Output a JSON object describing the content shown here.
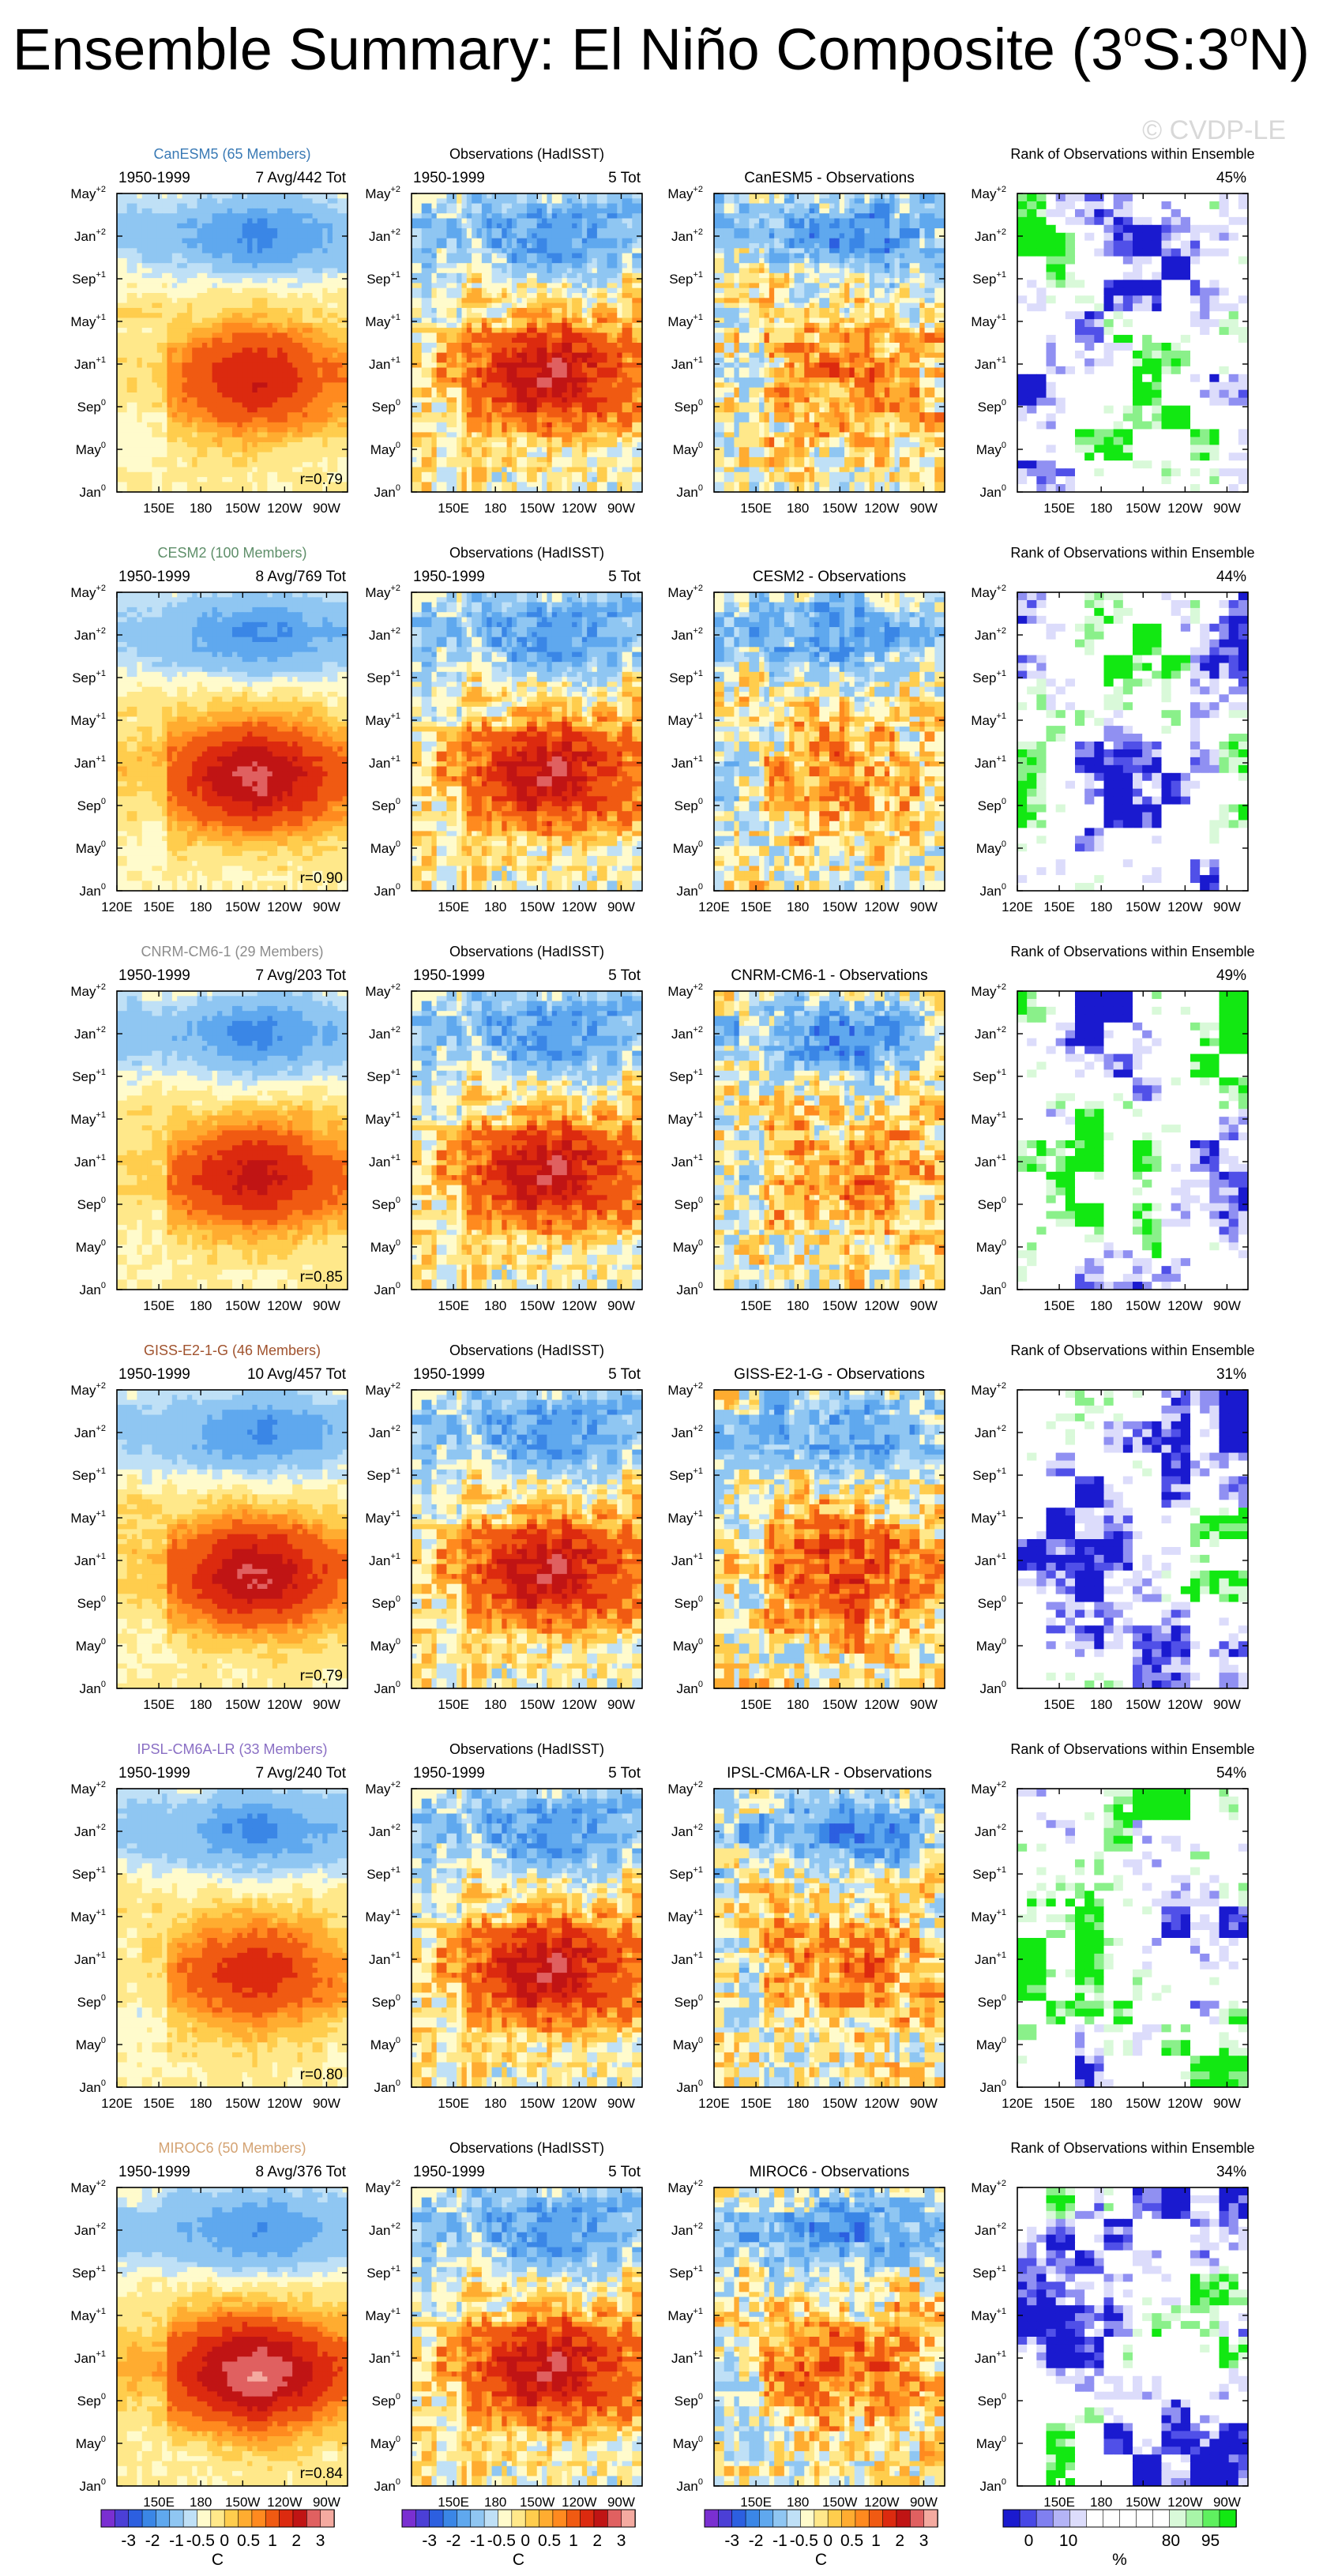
{
  "title": "Ensemble Summary: El Niño Composite (3",
  "title_sup1": "o",
  "title_mid": "S:3",
  "title_sup2": "o",
  "title_end": "N)",
  "watermark": "© CVDP-LE",
  "obs_title": "Observations (HadISST)",
  "rank_title": "Rank of Observations within Ensemble",
  "y_ticks": [
    {
      "b": "May",
      "s": "+2"
    },
    {
      "b": "Jan",
      "s": "+2"
    },
    {
      "b": "Sep",
      "s": "+1"
    },
    {
      "b": "May",
      "s": "+1"
    },
    {
      "b": "Jan",
      "s": "+1"
    },
    {
      "b": "Sep",
      "s": "0"
    },
    {
      "b": "May",
      "s": "0"
    },
    {
      "b": "Jan",
      "s": "0"
    }
  ],
  "x_ticks_short": [
    "150E",
    "180",
    "150W",
    "120W",
    "90W"
  ],
  "x_ticks_long": [
    "120E",
    "150E",
    "180",
    "150W",
    "120W",
    "90W"
  ],
  "rows": [
    {
      "model": "CanESM5 (65 Members)",
      "color": "#3a7ab5",
      "period": "1950-1999",
      "count": "7 Avg/442 Tot",
      "obs_period": "1950-1999",
      "obs_tot": "5 Tot",
      "diff": "CanESM5 - Observations",
      "rank": "45%",
      "r": "r=0.79",
      "peak": 2.0,
      "blend": 0.35,
      "long_ticks": false
    },
    {
      "model": "CESM2 (100 Members)",
      "color": "#5f8f6a",
      "period": "1950-1999",
      "count": "8 Avg/769 Tot",
      "obs_period": "1950-1999",
      "obs_tot": "5 Tot",
      "diff": "CESM2 - Observations",
      "rank": "44%",
      "r": "r=0.90",
      "peak": 2.6,
      "blend": 0.15,
      "long_ticks": true
    },
    {
      "model": "CNRM-CM6-1 (29 Members)",
      "color": "#8c8c8c",
      "period": "1950-1999",
      "count": "7 Avg/203 Tot",
      "obs_period": "1950-1999",
      "obs_tot": "5 Tot",
      "diff": "CNRM-CM6-1 - Observations",
      "rank": "49%",
      "r": "r=0.85",
      "peak": 2.2,
      "blend": 0.2,
      "long_ticks": false
    },
    {
      "model": "GISS-E2-1-G (46 Members)",
      "color": "#a0522d",
      "period": "1950-1999",
      "count": "10 Avg/457 Tot",
      "obs_period": "1950-1999",
      "obs_tot": "5 Tot",
      "diff": "GISS-E2-1-G - Observations",
      "rank": "31%",
      "r": "r=0.79",
      "peak": 2.5,
      "blend": 0.5,
      "long_ticks": false
    },
    {
      "model": "IPSL-CM6A-LR (33 Members)",
      "color": "#8a6fc4",
      "period": "1950-1999",
      "count": "7 Avg/240 Tot",
      "obs_period": "1950-1999",
      "obs_tot": "5 Tot",
      "diff": "IPSL-CM6A-LR - Observations",
      "rank": "54%",
      "r": "r=0.80",
      "peak": 1.8,
      "blend": 0.3,
      "long_ticks": true
    },
    {
      "model": "MIROC6 (50 Members)",
      "color": "#d4a373",
      "period": "1950-1999",
      "count": "8 Avg/376 Tot",
      "obs_period": "1950-1999",
      "obs_tot": "5 Tot",
      "diff": "MIROC6 - Observations",
      "rank": "34%",
      "r": "r=0.84",
      "peak": 3.0,
      "blend": 0.25,
      "long_ticks": false
    }
  ],
  "sst_colorbar": {
    "labels": [
      "-3",
      "-2",
      "-1",
      "-0.5",
      "0",
      "0.5",
      "1",
      "2",
      "3"
    ],
    "unit": "C",
    "colors": [
      "#7a2fd1",
      "#4b3fd6",
      "#2c5fe0",
      "#3a86e6",
      "#5fa8ee",
      "#8fc6f2",
      "#bfe0f6",
      "#fffbcc",
      "#ffe88a",
      "#ffcd4d",
      "#ffac30",
      "#ff8a1f",
      "#f05a12",
      "#dc2a0f",
      "#c01414",
      "#e06060",
      "#f4aaa0"
    ]
  },
  "rank_colorbar": {
    "labels": [
      "0",
      "10",
      "80",
      "95"
    ],
    "unit": "%",
    "colors": [
      "#1a1acf",
      "#4848e6",
      "#8080f0",
      "#b4b4f6",
      "#dcdcfb",
      "#ffffff",
      "#ffffff",
      "#ffffff",
      "#ffffff",
      "#ffffff",
      "#d9f9d9",
      "#a8f5a8",
      "#5ff05f",
      "#12e812"
    ]
  }
}
